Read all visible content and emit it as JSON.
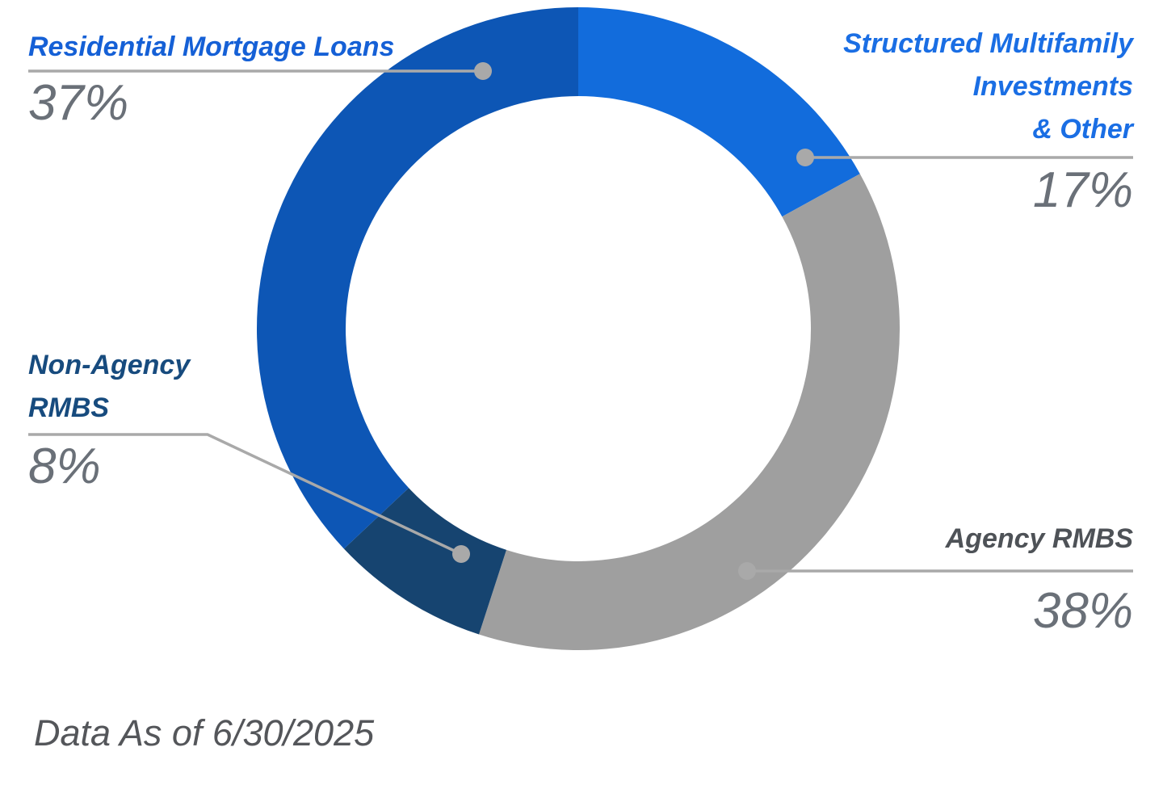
{
  "chart_data": {
    "type": "pie",
    "subtype": "donut",
    "title": "",
    "direction": "clockwise",
    "start_angle_deg": 0,
    "inner_radius_ratio": 0.72,
    "legend_position": "callouts",
    "slices": [
      {
        "key": "structured",
        "label": "Structured Multifamily Investments & Other",
        "value_pct": 17,
        "color": "#126cdc"
      },
      {
        "key": "agency",
        "label": "Agency RMBS",
        "value_pct": 38,
        "color": "#9f9f9f"
      },
      {
        "key": "nonagency",
        "label": "Non-Agency RMBS",
        "value_pct": 8,
        "color": "#164470"
      },
      {
        "key": "residential",
        "label": "Residential Mortgage Loans",
        "value_pct": 37,
        "color": "#0d56b5"
      }
    ],
    "footnote": "Data As of 6/30/2025"
  },
  "labels": {
    "residential": {
      "title": "Residential Mortgage Loans",
      "pct": "37%",
      "color": "#1560d6"
    },
    "structured": {
      "lines": [
        "Structured Multifamily",
        "Investments",
        "& Other"
      ],
      "pct": "17%",
      "color": "#1a6ee4"
    },
    "nonagency": {
      "lines": [
        "Non-Agency",
        "RMBS"
      ],
      "pct": "8%",
      "color": "#174b7e"
    },
    "agency": {
      "title": "Agency RMBS",
      "pct": "38%",
      "color": "#4e5257"
    },
    "pct_color": "#6a7078",
    "leader_line_color": "#a9a9a9",
    "footer": "Data As of 6/30/2025",
    "footer_color": "#54565a"
  }
}
